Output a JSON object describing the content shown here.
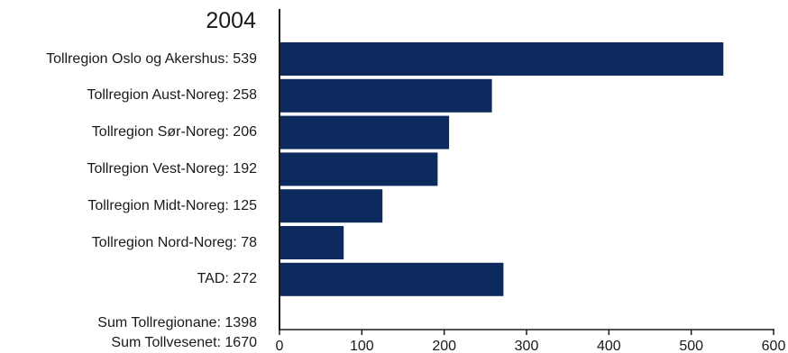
{
  "chart_data": {
    "type": "bar",
    "orientation": "horizontal",
    "title": "2004",
    "categories": [
      "Tollregion Oslo og Akershus: 539",
      "Tollregion Aust-Noreg: 258",
      "Tollregion Sør-Noreg: 206",
      "Tollregion Vest-Noreg: 192",
      "Tollregion Midt-Noreg: 125",
      "Tollregion Nord-Noreg: 78",
      "TAD: 272"
    ],
    "values": [
      539,
      258,
      206,
      192,
      125,
      78,
      272
    ],
    "xlim": [
      0,
      600
    ],
    "xticks": [
      "0",
      "100",
      "200",
      "300",
      "400",
      "500",
      "600"
    ],
    "bar_color": "#0d2a5e",
    "grid": false,
    "legend": "none",
    "summary": [
      "Sum Tollregionane: 1398",
      "Sum Tollvesenet: 1670"
    ]
  }
}
